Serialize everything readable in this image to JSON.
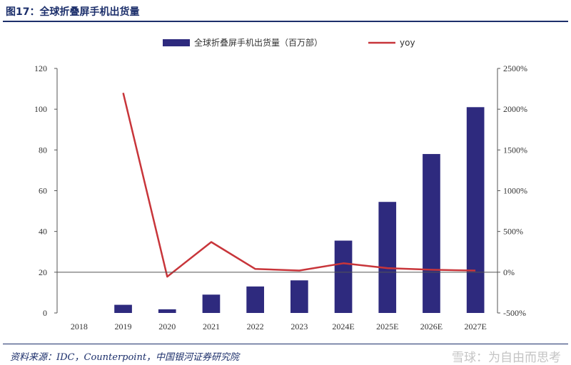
{
  "header": {
    "title": "图17：全球折叠屏手机出货量"
  },
  "footer": {
    "source": "资料来源：IDC，Counterpoint，中国银河证券研究院",
    "watermark": "雪球：为自由而思考"
  },
  "colors": {
    "bar": "#2e2a7e",
    "line": "#c8353a",
    "rule": "#1c2f6b"
  },
  "chart_data": {
    "type": "bar",
    "categories": [
      "2018",
      "2019",
      "2020",
      "2021",
      "2022",
      "2023",
      "2024E",
      "2025E",
      "2026E",
      "2027E"
    ],
    "series": [
      {
        "name": "全球折叠屏手机出货量（百万部）",
        "type": "bar",
        "axis": "left",
        "values": [
          0,
          4,
          1.8,
          9,
          13,
          16,
          35.5,
          54.5,
          78,
          101
        ]
      },
      {
        "name": "yoy",
        "type": "line",
        "axis": "right",
        "values": [
          null,
          2200,
          -55,
          370,
          40,
          20,
          110,
          50,
          30,
          20
        ]
      }
    ],
    "y_left": {
      "min": 0,
      "max": 120,
      "ticks": [
        0,
        20,
        40,
        60,
        80,
        100,
        120
      ]
    },
    "y_right": {
      "min": -500,
      "max": 2500,
      "ticks": [
        -500,
        0,
        500,
        1000,
        1500,
        2000,
        2500
      ],
      "format": "percent"
    },
    "legend": "top-center",
    "grid": false
  }
}
